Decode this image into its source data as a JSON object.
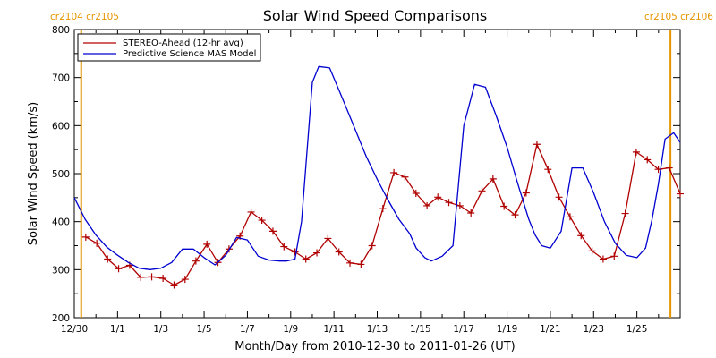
{
  "chart_data": {
    "type": "line",
    "title": "Solar Wind Speed Comparisons",
    "xlabel": "Month/Day from 2010-12-30 to 2011-01-26 (UT)",
    "ylabel": "Solar Wind Speed (km/s)",
    "xlim": [
      0,
      28
    ],
    "ylim": [
      200,
      800
    ],
    "yticks": [
      200,
      300,
      400,
      500,
      600,
      700,
      800
    ],
    "xtick_labels": [
      {
        "x": 0,
        "label": "12/30"
      },
      {
        "x": 2,
        "label": "1/1"
      },
      {
        "x": 4,
        "label": "1/3"
      },
      {
        "x": 6,
        "label": "1/5"
      },
      {
        "x": 8,
        "label": "1/7"
      },
      {
        "x": 10,
        "label": "1/9"
      },
      {
        "x": 12,
        "label": "1/11"
      },
      {
        "x": 14,
        "label": "1/13"
      },
      {
        "x": 16,
        "label": "1/15"
      },
      {
        "x": 18,
        "label": "1/17"
      },
      {
        "x": 20,
        "label": "1/19"
      },
      {
        "x": 22,
        "label": "1/21"
      },
      {
        "x": 24,
        "label": "1/23"
      },
      {
        "x": 26,
        "label": "1/25"
      }
    ],
    "carrington_markers": [
      {
        "x": 0.32,
        "labels": [
          "cr2104",
          "cr2105"
        ],
        "side": "left"
      },
      {
        "x": 27.55,
        "labels": [
          "cr2105",
          "cr2106"
        ],
        "side": "right"
      }
    ],
    "legend_position": "top-left",
    "series": [
      {
        "name": "STEREO-Ahead (12-hr avg)",
        "color": "#b00000",
        "marker": "plus",
        "x": [
          0.53,
          1.04,
          1.54,
          2.05,
          2.56,
          3.07,
          3.58,
          4.1,
          4.61,
          5.12,
          5.62,
          6.13,
          6.64,
          7.15,
          7.66,
          8.17,
          8.67,
          9.18,
          9.69,
          10.2,
          10.7,
          11.21,
          11.72,
          12.23,
          12.74,
          13.25,
          13.76,
          14.26,
          14.77,
          15.28,
          15.79,
          16.3,
          16.8,
          17.31,
          17.82,
          18.33,
          18.84,
          19.35,
          19.86,
          20.37,
          20.88,
          21.38,
          21.89,
          22.4,
          22.91,
          23.42,
          23.93,
          24.44,
          24.95,
          25.46,
          25.97,
          26.48,
          26.99,
          27.49,
          28.0
        ],
        "y": [
          368,
          355,
          322,
          302,
          309,
          284,
          285,
          282,
          268,
          280,
          318,
          353,
          315,
          343,
          370,
          420,
          403,
          380,
          348,
          337,
          322,
          335,
          365,
          337,
          314,
          311,
          350,
          427,
          502,
          493,
          459,
          433,
          451,
          440,
          433,
          418,
          464,
          489,
          432,
          414,
          460,
          561,
          509,
          451,
          410,
          371,
          339,
          322,
          328,
          417,
          545,
          529,
          509,
          512,
          458
        ]
      },
      {
        "name": "Predictive Science MAS Model",
        "color": "#0000d0",
        "x": [
          0,
          0.5,
          1,
          1.5,
          2,
          2.5,
          3,
          3.5,
          4,
          4.5,
          5,
          5.5,
          6,
          6.5,
          7,
          7.5,
          8,
          8.5,
          9,
          9.5,
          9.8,
          10.2,
          10.5,
          11,
          11.3,
          11.8,
          12.5,
          13,
          13.5,
          14,
          14.5,
          15,
          15.5,
          15.8,
          16.2,
          16.5,
          17,
          17.5,
          18,
          18.5,
          19,
          19.5,
          20,
          20.5,
          21,
          21.3,
          21.6,
          22,
          22.5,
          23,
          23.5,
          24,
          24.5,
          25,
          25.5,
          26,
          26.4,
          26.7,
          27,
          27.3,
          27.7,
          28
        ],
        "y": [
          450,
          405,
          372,
          347,
          330,
          315,
          303,
          300,
          303,
          315,
          343,
          343,
          325,
          310,
          330,
          367,
          362,
          328,
          320,
          318,
          318,
          322,
          400,
          690,
          723,
          720,
          645,
          590,
          535,
          488,
          445,
          405,
          375,
          345,
          325,
          318,
          328,
          350,
          600,
          686,
          680,
          620,
          555,
          478,
          405,
          372,
          350,
          345,
          380,
          512,
          512,
          460,
          400,
          355,
          330,
          325,
          345,
          405,
          480,
          572,
          585,
          565
        ]
      }
    ]
  }
}
